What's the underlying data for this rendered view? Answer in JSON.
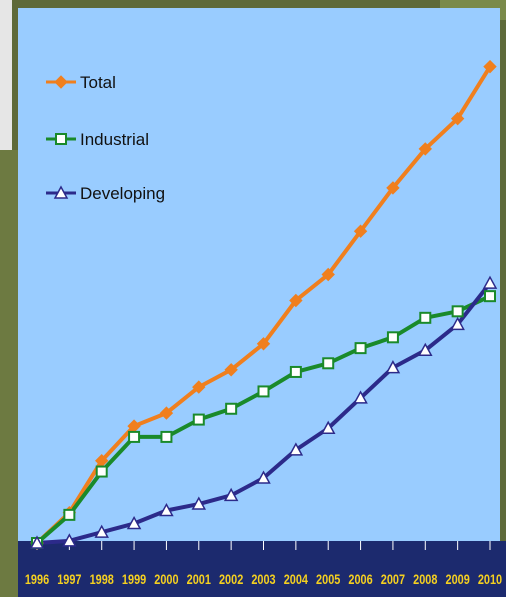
{
  "chart_data": {
    "type": "line",
    "x": [
      "1996",
      "1997",
      "1998",
      "1999",
      "2000",
      "2001",
      "2002",
      "2003",
      "2004",
      "2005",
      "2006",
      "2007",
      "2008",
      "2009",
      "2010"
    ],
    "series": [
      {
        "name": "Total",
        "color": "#f07f1e",
        "marker": "diamond",
        "values": [
          0,
          7,
          19,
          27,
          30,
          36,
          40,
          46,
          56,
          62,
          72,
          82,
          91,
          98,
          110
        ]
      },
      {
        "name": "Industrial",
        "color": "#1a8a2a",
        "marker": "square",
        "values": [
          0,
          6.5,
          16.5,
          24.5,
          24.5,
          28.5,
          31,
          35,
          39.5,
          41.5,
          45,
          47.5,
          52,
          53.5,
          57
        ]
      },
      {
        "name": "Developing",
        "color": "#2c2a8a",
        "marker": "triangle",
        "values": [
          0,
          0.5,
          2.5,
          4.5,
          7.5,
          9,
          11,
          15,
          21.5,
          26.5,
          33.5,
          40.5,
          44.5,
          50.5,
          60
        ]
      }
    ],
    "title": "",
    "xlabel": "",
    "ylabel": "",
    "ylim": [
      0,
      115
    ],
    "grid": false,
    "legend": "top-left"
  },
  "colors": {
    "plot_background": "#99ccff",
    "axis_band": "#1c2a6e",
    "tick_label": "#f5d020",
    "page_background": "#5f6a3c"
  }
}
